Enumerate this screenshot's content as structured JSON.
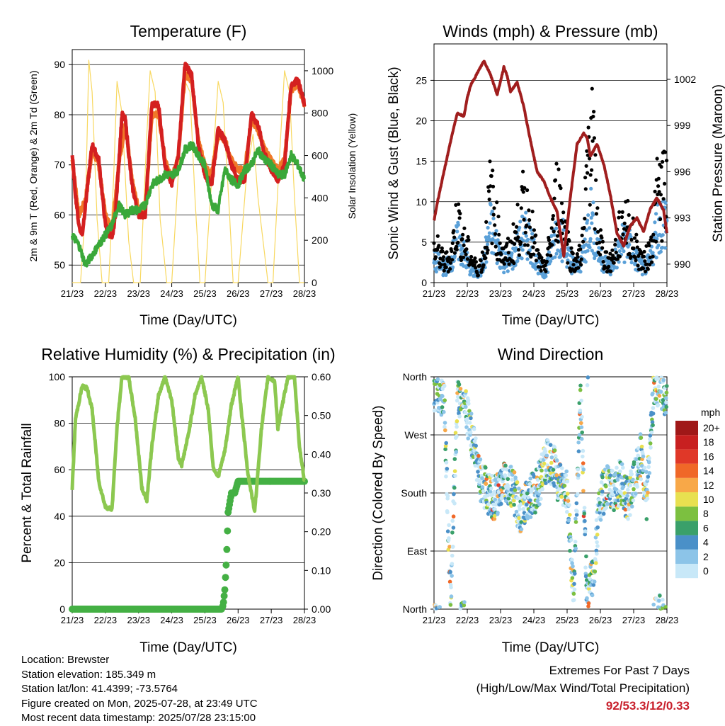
{
  "chart_data": [
    {
      "type": "line",
      "title": "Temperature (F)",
      "xlabel": "Time (Day/UTC)",
      "ylabel": "2m & 9m T (Red, Orange) & 2m Td (Green)",
      "y2label": "Solar Insolation (Yellow)",
      "x_ticks": [
        "21/23",
        "22/23",
        "23/23",
        "24/23",
        "25/23",
        "26/23",
        "27/23",
        "28/23"
      ],
      "y_ticks": [
        50,
        60,
        70,
        80,
        90
      ],
      "y2_ticks": [
        0,
        200,
        400,
        600,
        800,
        1000
      ],
      "ylim": [
        46.5,
        93
      ],
      "y2lim": [
        0,
        1100
      ],
      "grid": true,
      "series": [
        {
          "name": "2m T",
          "color": "#d42020",
          "x": [
            0,
            0.1,
            0.2,
            0.3,
            0.4,
            0.6,
            0.8,
            1.0,
            1.2,
            1.3,
            1.5,
            1.6,
            1.8,
            2.0,
            2.2,
            2.4,
            2.6,
            2.8,
            3.0,
            3.2,
            3.4,
            3.6,
            3.8,
            4.0,
            4.2,
            4.4,
            4.6,
            4.8,
            5.0,
            5.2,
            5.4,
            5.6,
            5.8,
            6.0,
            6.2,
            6.4,
            6.6,
            6.8,
            7.0
          ],
          "values": [
            72,
            64,
            58,
            56,
            62,
            74,
            71,
            58,
            55,
            60,
            80,
            79,
            66,
            60,
            60,
            82,
            82,
            70,
            66,
            72,
            90,
            88,
            74,
            68,
            66,
            77,
            75,
            70,
            67,
            67,
            80,
            78,
            72,
            69,
            67,
            70,
            86,
            87,
            82
          ]
        },
        {
          "name": "9m T",
          "color": "#f07828",
          "x": [
            0,
            0.2,
            0.4,
            0.6,
            0.8,
            1.0,
            1.2,
            1.4,
            1.6,
            1.8,
            2.0,
            2.2,
            2.4,
            2.6,
            2.8,
            3.0,
            3.2,
            3.4,
            3.6,
            3.8,
            4.0,
            4.2,
            4.4,
            4.6,
            4.8,
            5.0,
            5.2,
            5.4,
            5.6,
            5.8,
            6.0,
            6.2,
            6.4,
            6.6,
            6.8,
            7.0
          ],
          "values": [
            71,
            60,
            63,
            73,
            70,
            60,
            57,
            70,
            78,
            67,
            61,
            61,
            80,
            80,
            71,
            67,
            72,
            88,
            87,
            75,
            70,
            68,
            76,
            75,
            71,
            69,
            69,
            79,
            77,
            73,
            71,
            69,
            71,
            85,
            86,
            82
          ]
        },
        {
          "name": "2m Td",
          "color": "#3aa83a",
          "x": [
            0,
            0.2,
            0.4,
            0.6,
            0.8,
            1.0,
            1.2,
            1.4,
            1.6,
            1.8,
            2.0,
            2.2,
            2.4,
            2.6,
            2.8,
            3.0,
            3.2,
            3.4,
            3.6,
            3.8,
            4.0,
            4.2,
            4.4,
            4.6,
            4.8,
            5.0,
            5.2,
            5.4,
            5.6,
            5.8,
            6.0,
            6.2,
            6.4,
            6.6,
            6.8,
            7.0
          ],
          "values": [
            56,
            54,
            50,
            52,
            54,
            56,
            58,
            62,
            60,
            61,
            61,
            62,
            66,
            67,
            68,
            68,
            69,
            73,
            74,
            72,
            70,
            62,
            61,
            69,
            67,
            66,
            69,
            70,
            73,
            71,
            70,
            68,
            68,
            72,
            70,
            67
          ]
        },
        {
          "name": "Solar Insolation",
          "color": "#f8d860",
          "axis": "y2",
          "x": [
            0.25,
            0.4,
            0.5,
            0.6,
            0.75,
            0.9,
            1.1,
            1.25,
            1.35,
            1.5,
            1.7,
            1.85,
            2.05,
            2.25,
            2.35,
            2.5,
            2.65,
            2.85,
            3.0,
            3.25,
            3.4,
            3.55,
            3.7,
            3.85,
            4.0,
            4.25,
            4.4,
            4.55,
            4.75,
            4.85,
            5.0,
            5.25,
            5.45,
            5.6,
            5.75,
            5.9,
            6.05,
            6.25,
            6.4,
            6.55,
            6.7,
            6.85,
            7.0
          ],
          "values": [
            0,
            350,
            1050,
            900,
            300,
            0,
            0,
            500,
            950,
            800,
            200,
            0,
            0,
            700,
            1000,
            900,
            300,
            0,
            0,
            650,
            950,
            900,
            400,
            0,
            0,
            600,
            950,
            850,
            300,
            0,
            0,
            500,
            700,
            400,
            200,
            0,
            0,
            600,
            1000,
            900,
            400,
            0,
            0
          ]
        }
      ]
    },
    {
      "type": "scatter",
      "title": "Winds (mph) & Pressure (mb)",
      "xlabel": "Time (Day/UTC)",
      "ylabel": "Sonic Wind & Gust (Blue, Black)",
      "y2label": "Station Pressure (Maroon)",
      "x_ticks": [
        "21/23",
        "22/23",
        "23/23",
        "24/23",
        "25/23",
        "26/23",
        "27/23",
        "28/23"
      ],
      "y_ticks": [
        0,
        5,
        10,
        15,
        20,
        25
      ],
      "y2_ticks": [
        990,
        993,
        996,
        999,
        1002
      ],
      "ylim": [
        0,
        29.5
      ],
      "y2lim": [
        988.8,
        1004.3
      ],
      "grid": true,
      "series": [
        {
          "name": "Station Pressure",
          "color": "#a01e1e",
          "axis": "y2",
          "x": [
            0,
            0.1,
            0.3,
            0.5,
            0.7,
            0.9,
            1.0,
            1.1,
            1.3,
            1.5,
            1.7,
            1.9,
            2.1,
            2.2,
            2.3,
            2.5,
            2.7,
            2.9,
            3.1,
            3.3,
            3.5,
            3.7,
            3.9,
            4.1,
            4.3,
            4.5,
            4.6,
            4.7,
            4.9,
            5.1,
            5.3,
            5.5,
            5.7,
            5.9,
            6.1,
            6.3,
            6.5,
            6.7,
            6.9,
            7.0
          ],
          "values": [
            992.8,
            994,
            996,
            998,
            999.8,
            999.6,
            1000.8,
            1001.6,
            1002.4,
            1003.2,
            1002.3,
            1001,
            1002.8,
            1002.2,
            1001.2,
            1001.8,
            1000.2,
            998,
            996,
            995.4,
            994.3,
            993.4,
            990.5,
            994.4,
            997.8,
            998.5,
            998.2,
            997,
            997.8,
            996.5,
            994.5,
            992,
            991.2,
            992.5,
            993,
            992.1,
            993.6,
            994.3,
            993.5,
            992
          ]
        },
        {
          "name": "Gust",
          "color": "#000000",
          "x": [
            0.1,
            0.3,
            0.5,
            0.7,
            0.9,
            1.1,
            1.3,
            1.5,
            1.7,
            1.9,
            2.1,
            2.3,
            2.5,
            2.7,
            2.9,
            3.1,
            3.3,
            3.5,
            3.7,
            3.9,
            4.1,
            4.3,
            4.5,
            4.7,
            4.9,
            5.1,
            5.3,
            5.5,
            5.7,
            5.9,
            6.1,
            6.3,
            6.5,
            6.7,
            6.9
          ],
          "values": [
            5,
            3,
            4,
            10,
            6,
            4,
            2,
            4,
            14,
            8,
            4,
            5,
            8,
            12,
            9,
            4,
            2,
            6,
            14,
            10,
            4,
            3,
            7,
            27,
            9,
            4,
            3,
            6,
            10,
            8,
            5,
            3,
            5,
            13,
            15
          ]
        },
        {
          "name": "Wind",
          "color": "#5aa0d8",
          "x": [
            0.1,
            0.3,
            0.5,
            0.7,
            0.9,
            1.1,
            1.3,
            1.5,
            1.7,
            1.9,
            2.1,
            2.3,
            2.5,
            2.7,
            2.9,
            3.1,
            3.3,
            3.5,
            3.7,
            3.9,
            4.1,
            4.3,
            4.5,
            4.7,
            4.9,
            5.1,
            5.3,
            5.5,
            5.7,
            5.9,
            6.1,
            6.3,
            6.5,
            6.7,
            6.9
          ],
          "values": [
            3,
            2,
            3,
            6,
            4,
            2,
            1,
            3,
            8,
            5,
            3,
            3,
            5,
            7,
            6,
            3,
            1,
            4,
            8,
            6,
            3,
            2,
            4,
            10,
            5,
            3,
            2,
            4,
            6,
            5,
            3,
            2,
            3,
            8,
            9
          ]
        }
      ]
    },
    {
      "type": "line",
      "title": "Relative Humidity (%) & Precipitation (in)",
      "xlabel": "Time (Day/UTC)",
      "ylabel": "Percent & Total Rainfall",
      "x_ticks": [
        "21/23",
        "22/23",
        "23/23",
        "24/23",
        "25/23",
        "26/23",
        "27/23",
        "28/23"
      ],
      "y_ticks": [
        0,
        20,
        40,
        60,
        80,
        100
      ],
      "y2_ticks": [
        "0.00",
        "0.10",
        "0.20",
        "0.30",
        "0.40",
        "0.50",
        "0.60"
      ],
      "ylim": [
        0,
        100
      ],
      "y2lim": [
        0,
        0.6
      ],
      "grid": true,
      "series": [
        {
          "name": "Relative Humidity",
          "color": "#8cc850",
          "x": [
            0,
            0.1,
            0.3,
            0.45,
            0.6,
            0.8,
            1.0,
            1.2,
            1.35,
            1.5,
            1.7,
            1.9,
            2.1,
            2.25,
            2.4,
            2.6,
            2.8,
            3.0,
            3.2,
            3.3,
            3.5,
            3.7,
            3.9,
            4.1,
            4.25,
            4.4,
            4.6,
            4.8,
            5.0,
            5.1,
            5.3,
            5.5,
            5.7,
            5.9,
            6.1,
            6.2,
            6.5,
            6.7,
            6.85,
            7.0
          ],
          "values": [
            52,
            82,
            96,
            95,
            86,
            55,
            44,
            43,
            78,
            100,
            100,
            82,
            52,
            47,
            70,
            92,
            100,
            90,
            65,
            62,
            75,
            92,
            100,
            86,
            61,
            57,
            68,
            88,
            100,
            85,
            58,
            42,
            77,
            100,
            98,
            78,
            100,
            100,
            70,
            55
          ]
        },
        {
          "name": "Total Precipitation",
          "color": "#44b044",
          "axis": "y2",
          "x": [
            0,
            4.5,
            4.55,
            4.6,
            4.65,
            4.7,
            4.8,
            4.9,
            5.0,
            7.0
          ],
          "values": [
            0,
            0,
            0.01,
            0.05,
            0.13,
            0.25,
            0.3,
            0.3,
            0.33,
            0.33
          ]
        }
      ]
    },
    {
      "type": "scatter",
      "title": "Wind Direction",
      "xlabel": "Time (Day/UTC)",
      "ylabel": "Direction (Colored By Speed)",
      "x_ticks": [
        "21/23",
        "22/23",
        "23/23",
        "24/23",
        "25/23",
        "26/23",
        "27/23",
        "28/23"
      ],
      "y_ticks": [
        "North",
        "West",
        "South",
        "East",
        "North"
      ],
      "legend_title": "mph",
      "legend_labels": [
        "0",
        "2",
        "4",
        "6",
        "8",
        "10",
        "12",
        "14",
        "16",
        "18",
        "20+"
      ],
      "legend_colors": [
        "#c8e8f8",
        "#8cc4e8",
        "#4a90c8",
        "#3aa06a",
        "#7cc040",
        "#e8e050",
        "#f8a848",
        "#f06828",
        "#e03828",
        "#c82020",
        "#a01818"
      ],
      "grid": true,
      "series": [
        {
          "name": "direction",
          "x": [
            0.1,
            0.3,
            0.5,
            0.7,
            0.9,
            1.0,
            1.2,
            1.4,
            1.6,
            1.8,
            2.0,
            2.2,
            2.4,
            2.6,
            2.8,
            3.0,
            3.2,
            3.4,
            3.6,
            3.8,
            4.0,
            4.2,
            4.4,
            4.6,
            4.8,
            5.0,
            5.2,
            5.4,
            5.6,
            5.8,
            6.0,
            6.2,
            6.4,
            6.6,
            6.8,
            6.95
          ],
          "values": [
            340,
            330,
            20,
            320,
            350,
            300,
            250,
            200,
            180,
            170,
            190,
            200,
            180,
            150,
            170,
            180,
            200,
            230,
            220,
            190,
            180,
            20,
            340,
            10,
            60,
            170,
            190,
            180,
            200,
            170,
            190,
            240,
            170,
            340,
            350,
            330
          ]
        }
      ]
    }
  ],
  "info": {
    "location": "Location: Brewster",
    "elevation": "Station elevation: 185.349 m",
    "latlon": "Station lat/lon: 41.4399; -73.5764",
    "created": "Figure created on Mon, 2025-07-28, at 23:49 UTC",
    "recent": "Most recent data timestamp: 2025/07/28 23:15:00"
  },
  "extremes": {
    "title": "Extremes For Past 7 Days",
    "subtitle": "(High/Low/Max Wind/Total Precipitation)",
    "values": "92/53.3/12/0.33"
  }
}
